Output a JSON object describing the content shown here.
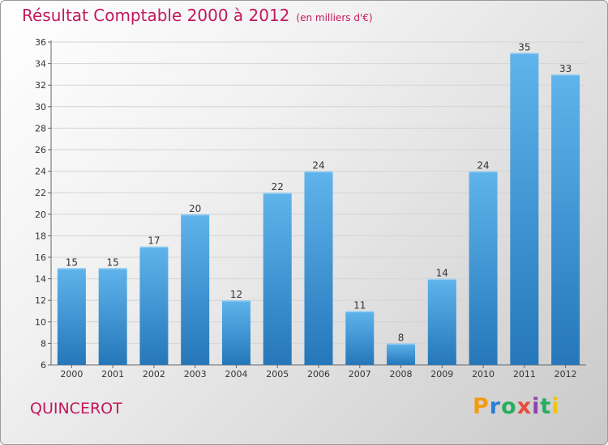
{
  "page": {
    "title": "Résultat Comptable 2000 à 2012",
    "subtitle": "(en milliers d'€)",
    "city": "QUINCEROT",
    "logo_text": "Proxiti"
  },
  "colors": {
    "title": "#c2185b",
    "bar_top": "#5fb4ec",
    "bar_bottom": "#2577b9",
    "logo": [
      "#f39c12",
      "#2a7fd4",
      "#27ae60",
      "#e74c3c",
      "#8e44ad",
      "#27ae60",
      "#f1c40f"
    ]
  },
  "chart_data": {
    "type": "bar",
    "title": "Résultat Comptable 2000 à 2012",
    "subtitle": "(en milliers d'€)",
    "xlabel": "",
    "ylabel": "",
    "ylim": [
      6,
      36
    ],
    "yticks": [
      6,
      8,
      10,
      12,
      14,
      16,
      18,
      20,
      22,
      24,
      26,
      28,
      30,
      32,
      34,
      36
    ],
    "grid": true,
    "categories": [
      "2000",
      "2001",
      "2002",
      "2003",
      "2004",
      "2005",
      "2006",
      "2007",
      "2008",
      "2009",
      "2010",
      "2011",
      "2012"
    ],
    "values": [
      15,
      15,
      17,
      20,
      12,
      22,
      24,
      11,
      8,
      14,
      24,
      35,
      33
    ],
    "data_labels": [
      "15",
      "15",
      "17",
      "20",
      "12",
      "22",
      "24",
      "11",
      "8",
      "14",
      "24",
      "35",
      "33"
    ]
  }
}
